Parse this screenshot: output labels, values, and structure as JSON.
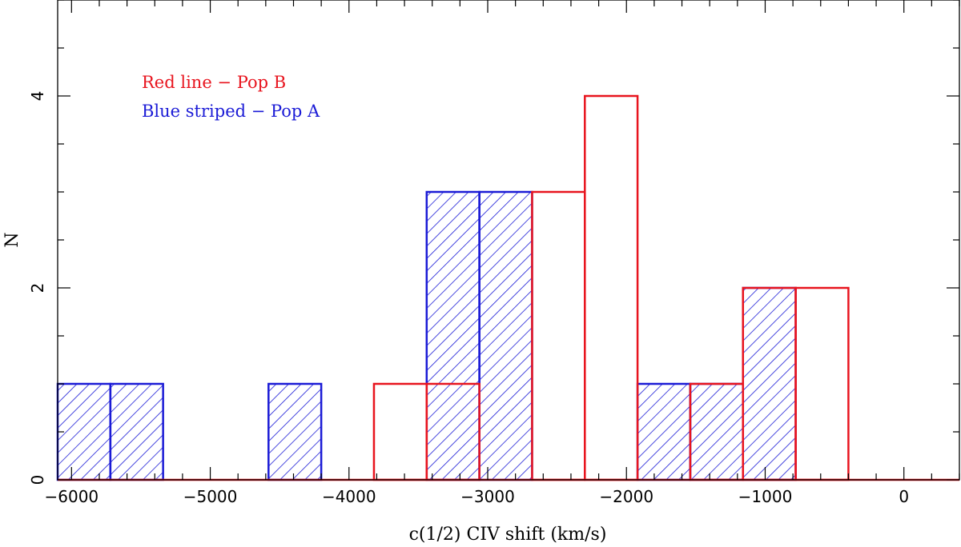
{
  "chart_data": {
    "type": "bar",
    "title": "",
    "xlabel": "c(1/2) CIV shift (km/s)",
    "ylabel": "N",
    "xlim": [
      -6100,
      400
    ],
    "ylim": [
      0,
      5
    ],
    "x_ticks": [
      -6000,
      -5000,
      -4000,
      -3000,
      -2000,
      -1000,
      0
    ],
    "x_tick_labels": [
      "−6000",
      "−5000",
      "−4000",
      "−3000",
      "−2000",
      "−1000",
      "0"
    ],
    "y_ticks": [
      0,
      2,
      4
    ],
    "y_tick_labels": [
      "0",
      "2",
      "4"
    ],
    "bin_edges": [
      -6100,
      -5720,
      -5340,
      -4960,
      -4580,
      -4200,
      -3820,
      -3440,
      -3060,
      -2680,
      -2300,
      -1920,
      -1540,
      -1160,
      -780,
      -400,
      -20
    ],
    "series": [
      {
        "name": "Pop B",
        "style": "outline",
        "color": "#e8141e",
        "counts": [
          0,
          0,
          0,
          0,
          0,
          0,
          1,
          1,
          0,
          3,
          4,
          0,
          1,
          2,
          2,
          0
        ]
      },
      {
        "name": "Pop A",
        "style": "hatched",
        "color": "#1b1bd6",
        "counts": [
          1,
          1,
          0,
          0,
          1,
          0,
          0,
          3,
          3,
          0,
          0,
          1,
          1,
          2,
          0,
          0
        ]
      }
    ],
    "legend": {
      "placement": "top-left",
      "entries": [
        {
          "text": "Red line − Pop B",
          "color": "#e8141e"
        },
        {
          "text": "Blue striped − Pop A",
          "color": "#1b1bd6"
        }
      ]
    },
    "grid": false
  }
}
